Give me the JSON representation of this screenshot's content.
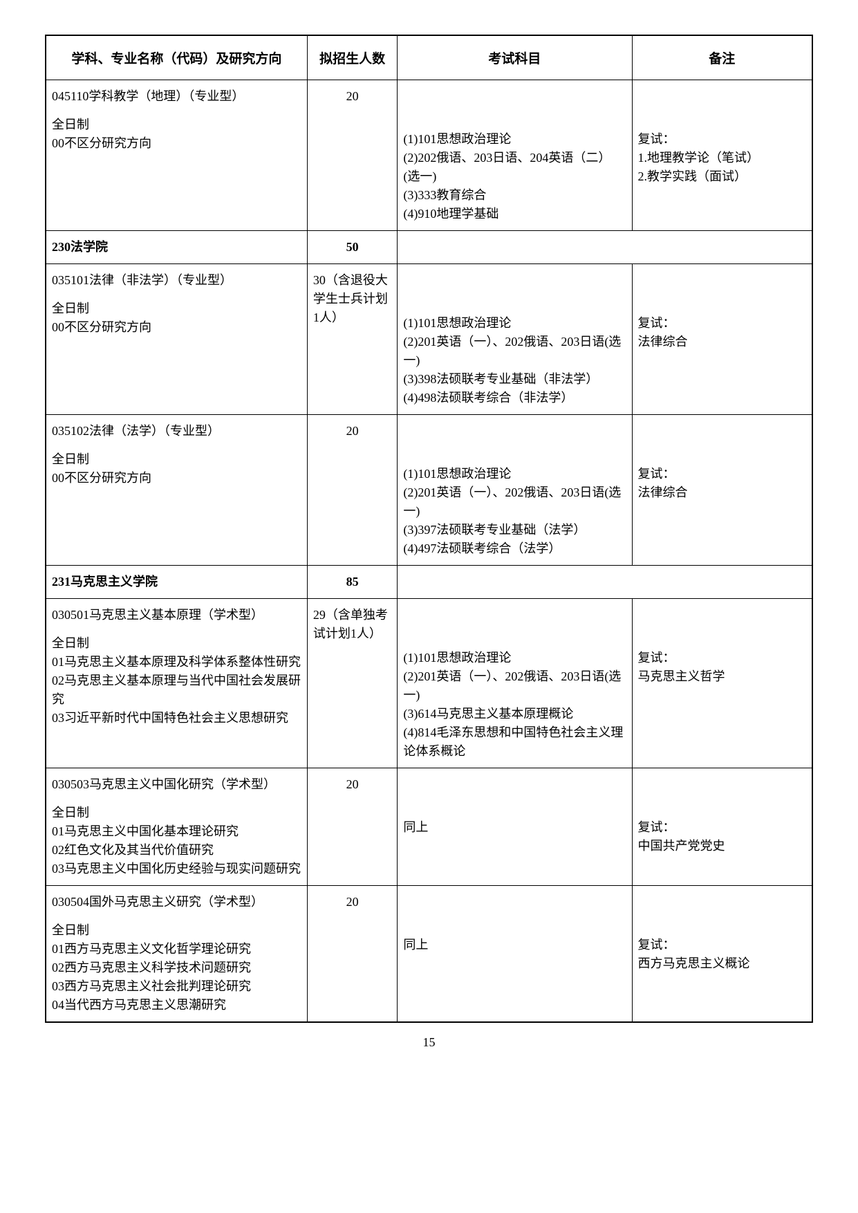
{
  "headers": {
    "col1": "学科、专业名称（代码）及研究方向",
    "col2": "拟招生人数",
    "col3": "考试科目",
    "col4": "备注"
  },
  "rows": [
    {
      "type": "program",
      "c1_title": "045110学科教学（地理）（专业型）",
      "c1_mode": "全日制",
      "c1_dirs": [
        "00不区分研究方向"
      ],
      "c2": "20",
      "c3": "(1)101思想政治理论\n(2)202俄语、203日语、204英语（二）(选一)\n(3)333教育综合\n(4)910地理学基础",
      "c4": "复试：\n1.地理教学论（笔试）\n2.教学实践（面试）"
    },
    {
      "type": "dept",
      "name": "230法学院",
      "count": "50"
    },
    {
      "type": "program",
      "c1_title": "035101法律（非法学）（专业型）",
      "c1_mode": "全日制",
      "c1_dirs": [
        "00不区分研究方向"
      ],
      "c2": "30（含退役大学生士兵计划1人）",
      "c3": "(1)101思想政治理论\n(2)201英语（一）、202俄语、203日语(选一)\n(3)398法硕联考专业基础（非法学）\n(4)498法硕联考综合（非法学）",
      "c4": "复试：\n法律综合"
    },
    {
      "type": "program",
      "c1_title": "035102法律（法学）（专业型）",
      "c1_mode": "全日制",
      "c1_dirs": [
        "00不区分研究方向"
      ],
      "c2": "20",
      "c3": "(1)101思想政治理论\n(2)201英语（一）、202俄语、203日语(选一)\n(3)397法硕联考专业基础（法学）\n(4)497法硕联考综合（法学）",
      "c4": "复试：\n法律综合"
    },
    {
      "type": "dept",
      "name": "231马克思主义学院",
      "count": "85"
    },
    {
      "type": "program",
      "c1_title": "030501马克思主义基本原理（学术型）",
      "c1_mode": "全日制",
      "c1_dirs": [
        "01马克思主义基本原理及科学体系整体性研究",
        "02马克思主义基本原理与当代中国社会发展研究",
        "03习近平新时代中国特色社会主义思想研究"
      ],
      "c2": "29（含单独考试计划1人）",
      "c3": "(1)101思想政治理论\n(2)201英语（一）、202俄语、203日语(选一)\n(3)614马克思主义基本原理概论\n(4)814毛泽东思想和中国特色社会主义理论体系概论",
      "c4": "复试：\n马克思主义哲学"
    },
    {
      "type": "program",
      "c1_title": "030503马克思主义中国化研究（学术型）",
      "c1_mode": "全日制",
      "c1_dirs": [
        "01马克思主义中国化基本理论研究",
        "02红色文化及其当代价值研究",
        "03马克思主义中国化历史经验与现实问题研究"
      ],
      "c2": "20",
      "c3": "同上",
      "c4": "复试：\n中国共产党党史"
    },
    {
      "type": "program",
      "c1_title": "030504国外马克思主义研究（学术型）",
      "c1_mode": "全日制",
      "c1_dirs": [
        "01西方马克思主义文化哲学理论研究",
        "02西方马克思主义科学技术问题研究",
        "03西方马克思主义社会批判理论研究",
        "04当代西方马克思主义思潮研究"
      ],
      "c2": "20",
      "c3": "同上",
      "c4": "复试：\n西方马克思主义概论"
    }
  ],
  "pageNumber": "15"
}
